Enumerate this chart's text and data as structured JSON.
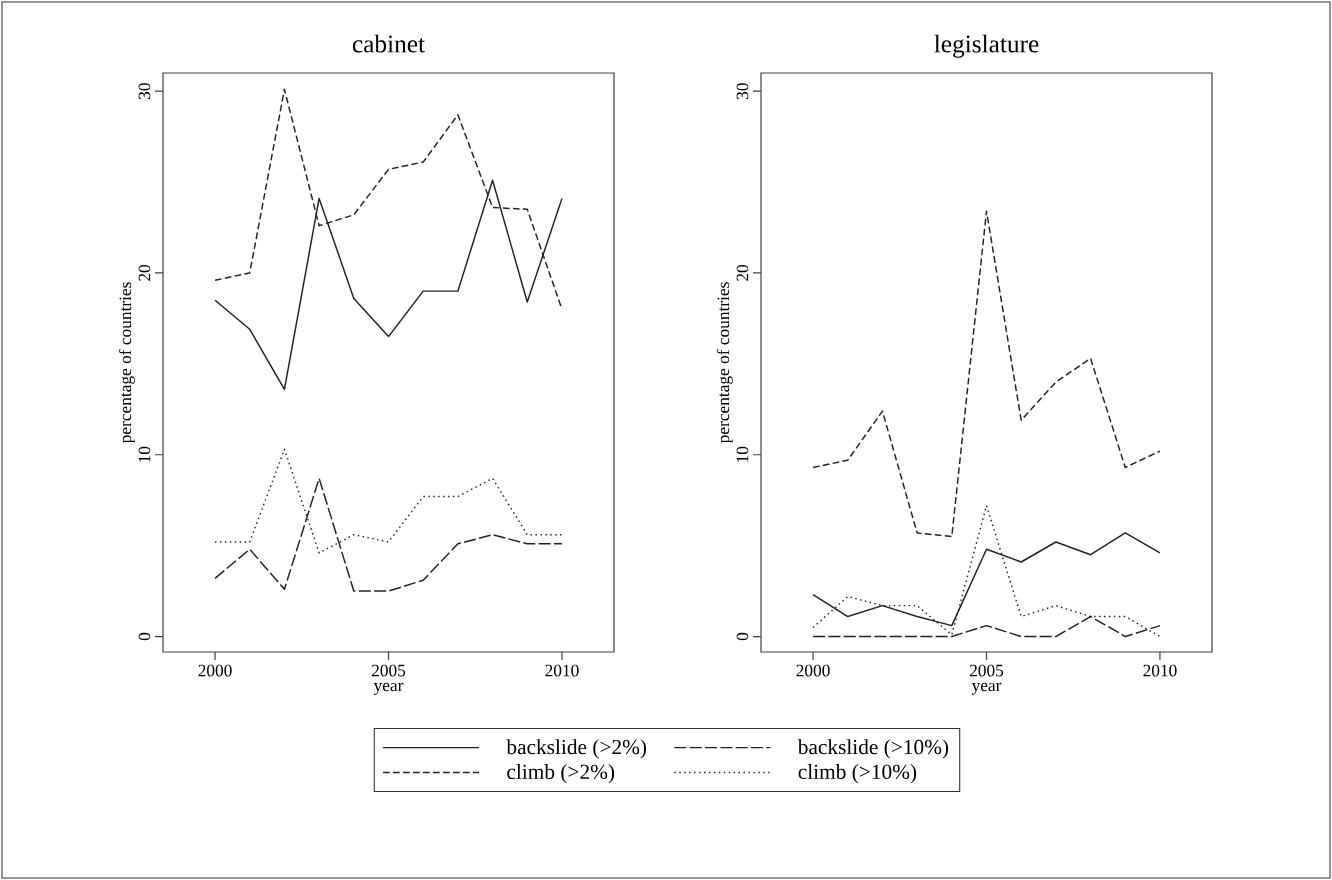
{
  "chart_data": [
    {
      "type": "line",
      "title": "cabinet",
      "xlabel": "year",
      "ylabel": "percentage of countries",
      "x": [
        2000,
        2001,
        2002,
        2003,
        2004,
        2005,
        2006,
        2007,
        2008,
        2009,
        2010
      ],
      "xlim": [
        1998.5,
        2011.5
      ],
      "ylim": [
        -0.85,
        31
      ],
      "xticks": [
        2000,
        2005,
        2010
      ],
      "yticks": [
        0,
        10,
        20,
        30
      ],
      "legend": "bottom",
      "marker": "none",
      "series": [
        {
          "name": "backslide (>2%)",
          "color": "#222222",
          "line_style": "solid",
          "values": [
            18.5,
            16.9,
            13.6,
            24.1,
            18.6,
            16.5,
            19.0,
            19.0,
            25.1,
            18.4,
            24.1
          ]
        },
        {
          "name": "backslide (>10%)",
          "color": "#222222",
          "line_style": "dashed",
          "values": [
            3.2,
            4.8,
            2.6,
            8.7,
            2.5,
            2.5,
            3.1,
            5.1,
            5.6,
            5.1,
            5.1
          ]
        },
        {
          "name": "climb (>2%)",
          "color": "#222222",
          "line_style": "dashed",
          "values": [
            19.6,
            20.0,
            30.1,
            22.6,
            23.2,
            25.7,
            26.1,
            28.7,
            23.6,
            23.5,
            18.0
          ]
        },
        {
          "name": "climb (>10%)",
          "color": "#222222",
          "line_style": "dotted",
          "values": [
            5.2,
            5.2,
            10.3,
            4.6,
            5.6,
            5.2,
            7.7,
            7.7,
            8.7,
            5.6,
            5.6
          ]
        }
      ]
    },
    {
      "type": "line",
      "title": "legislature",
      "xlabel": "year",
      "ylabel": "percentage of countries",
      "x": [
        2000,
        2001,
        2002,
        2003,
        2004,
        2005,
        2006,
        2007,
        2008,
        2009,
        2010
      ],
      "xlim": [
        1998.5,
        2011.5
      ],
      "ylim": [
        -0.85,
        31
      ],
      "xticks": [
        2000,
        2005,
        2010
      ],
      "yticks": [
        0,
        10,
        20,
        30
      ],
      "marker": "none",
      "series": [
        {
          "color": "#222222",
          "line_style": "solid",
          "values": [
            2.3,
            1.1,
            1.7,
            1.1,
            0.6,
            4.8,
            4.1,
            5.2,
            4.5,
            5.7,
            4.6
          ]
        },
        {
          "color": "#222222",
          "line_style": "dashed",
          "values": [
            0,
            0,
            0,
            0,
            0,
            0.6,
            0,
            0,
            1.1,
            0,
            0.6
          ]
        },
        {
          "color": "#222222",
          "line_style": "dashed",
          "values": [
            9.3,
            9.7,
            12.4,
            5.7,
            5.5,
            23.4,
            11.9,
            14.0,
            15.3,
            9.3,
            10.2
          ]
        },
        {
          "color": "#222222",
          "line_style": "dotted",
          "values": [
            0.5,
            2.2,
            1.7,
            1.7,
            0.1,
            7.2,
            1.1,
            1.7,
            1.1,
            1.1,
            0
          ]
        }
      ]
    }
  ]
}
